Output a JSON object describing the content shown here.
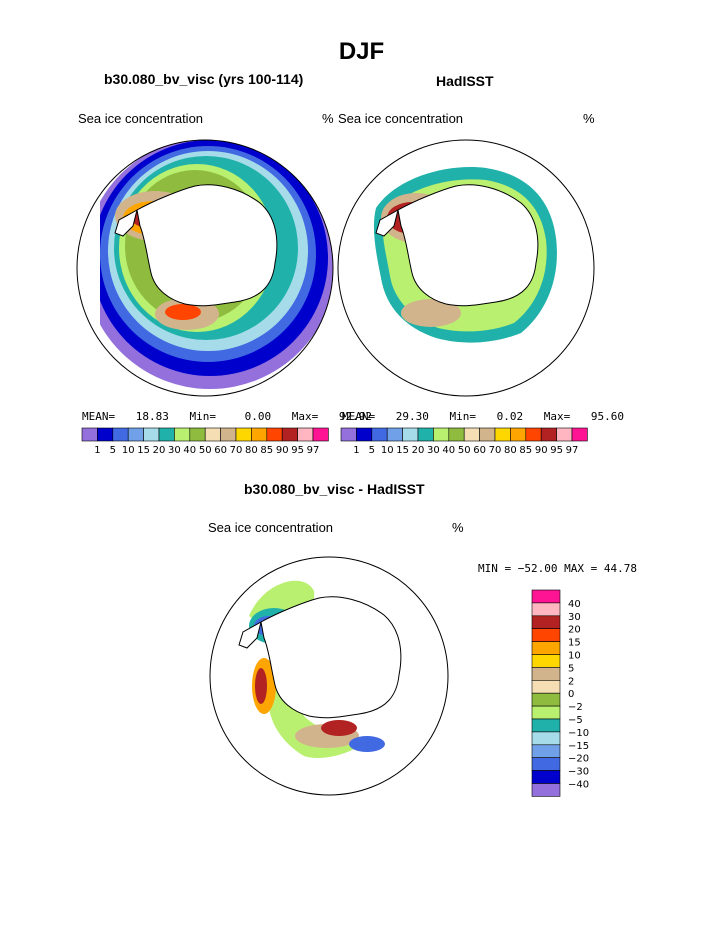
{
  "figure": {
    "title": "DJF",
    "panels": [
      {
        "id": "model",
        "title": "b30.080_bv_visc (yrs 100-114)",
        "left_label": "Sea ice concentration",
        "right_label": "%",
        "stats": {
          "mean_label": "MEAN=",
          "mean": "18.83",
          "min_label": "Min=",
          "min": "0.00",
          "max_label": "Max=",
          "max": "92.92"
        }
      },
      {
        "id": "obs",
        "title": "HadISST",
        "left_label": "Sea ice concentration",
        "right_label": "%",
        "stats": {
          "mean_label": "MEAN=",
          "mean": "29.30",
          "min_label": "Min=",
          "min": "0.02",
          "max_label": "Max=",
          "max": "95.60"
        }
      },
      {
        "id": "diff",
        "title": "b30.080_bv_visc - HadISST",
        "left_label": "Sea ice concentration",
        "right_label": "%",
        "range_text": "MIN = −52.00 MAX =  44.78"
      }
    ]
  },
  "colors": {
    "abs_scale": [
      "#9370db",
      "#0000cd",
      "#4169e1",
      "#6fa0e8",
      "#a6dcea",
      "#20b2aa",
      "#b9f070",
      "#8fbc3f",
      "#f5deb3",
      "#d2b48c",
      "#ffd700",
      "#ffa500",
      "#ff4500",
      "#b22222",
      "#ffb6c1",
      "#ff1493"
    ],
    "diff_scale": [
      "#9370db",
      "#0000cd",
      "#4169e1",
      "#6fa0e8",
      "#a6dcea",
      "#20b2aa",
      "#b9f070",
      "#8fbc3f",
      "#f5deb3",
      "#d2b48c",
      "#ffd700",
      "#ffa500",
      "#ff4500",
      "#b22222",
      "#ffb6c1",
      "#ff1493"
    ]
  },
  "chart_data": [
    {
      "type": "heatmap",
      "projection": "south-polar-stereographic",
      "title": "b30.080_bv_visc (yrs 100-114)",
      "variable": "Sea ice concentration",
      "units": "%",
      "mean": 18.83,
      "min": 0.0,
      "max": 92.92,
      "levels": [
        "1",
        "5",
        "10",
        "15",
        "20",
        "30",
        "40",
        "50",
        "60",
        "70",
        "80",
        "85",
        "90",
        "95",
        "97"
      ]
    },
    {
      "type": "heatmap",
      "projection": "south-polar-stereographic",
      "title": "HadISST",
      "variable": "Sea ice concentration",
      "units": "%",
      "mean": 29.3,
      "min": 0.02,
      "max": 95.6,
      "levels": [
        "1",
        "5",
        "10",
        "15",
        "20",
        "30",
        "40",
        "50",
        "60",
        "70",
        "80",
        "85",
        "90",
        "95",
        "97"
      ]
    },
    {
      "type": "heatmap",
      "projection": "south-polar-stereographic",
      "title": "b30.080_bv_visc - HadISST",
      "variable": "Sea ice concentration",
      "units": "%",
      "min": -52.0,
      "max": 44.78,
      "levels": [
        "40",
        "30",
        "20",
        "15",
        "10",
        "5",
        "2",
        "0",
        "−2",
        "−5",
        "−10",
        "−15",
        "−20",
        "−30",
        "−40"
      ]
    }
  ]
}
